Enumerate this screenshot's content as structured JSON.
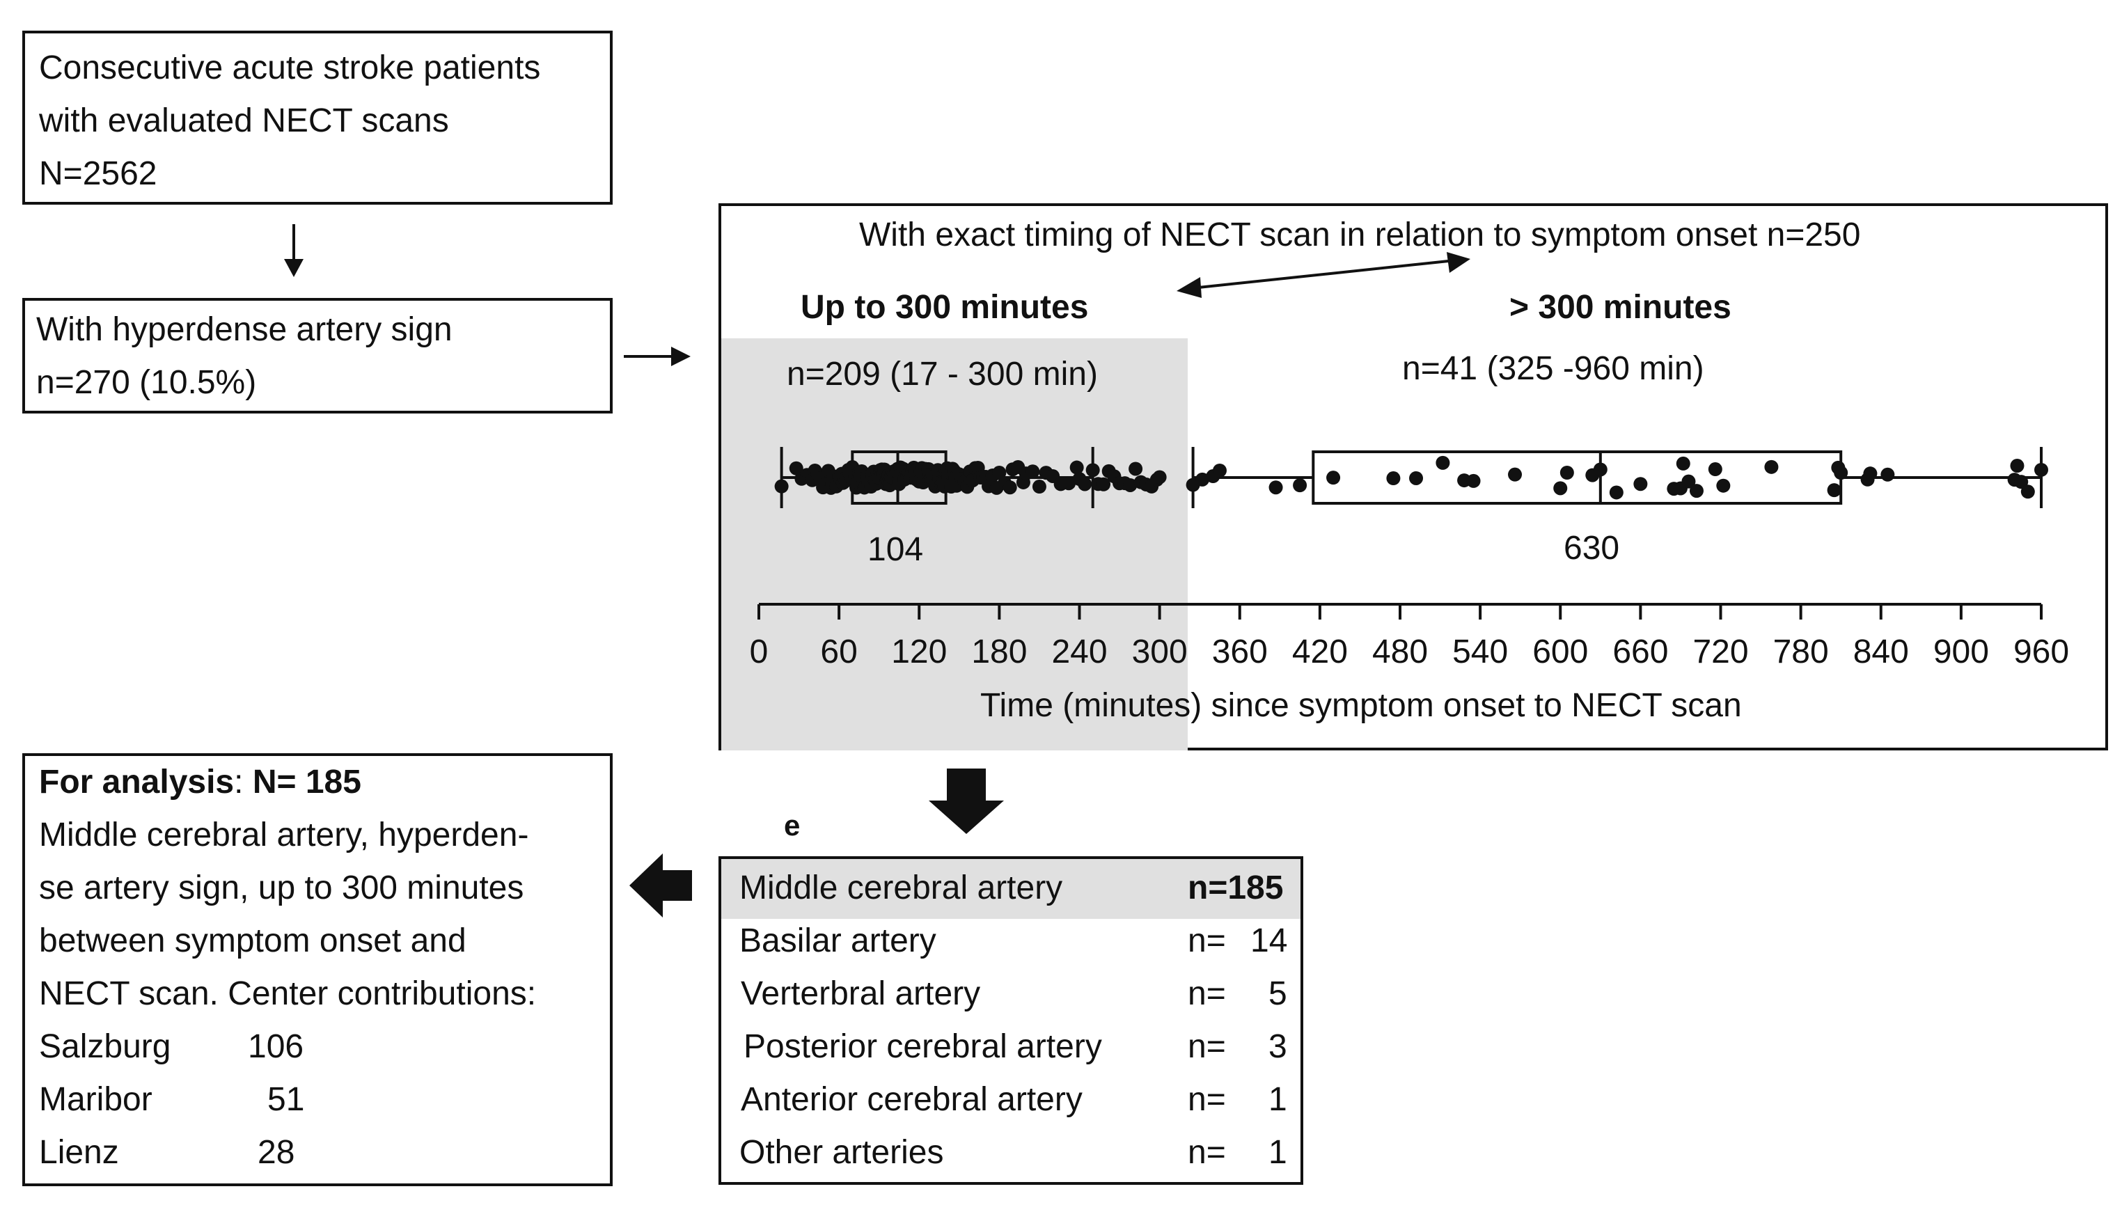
{
  "box1": {
    "lines": [
      "Consecutive acute stroke patients",
      "with evaluated NECT scans",
      "N=2562"
    ]
  },
  "box2": {
    "lines": [
      "With hyperdense artery sign",
      "n=270 (10.5%)"
    ]
  },
  "timing_panel": {
    "title": "With exact timing of NECT scan in relation to symptom onset n=250",
    "left_heading": "Up to 300 minutes",
    "right_heading": "> 300 minutes",
    "left_count": "n=209 (17 - 300 min)",
    "right_count": "n=41 (325 -960 min)",
    "left_median_label": "104",
    "right_median_label": "630",
    "axis_label": "Time (minutes) since symptom onset to NECT scan",
    "shade_color": "#e0e0e0"
  },
  "chart_data": {
    "type": "scatter",
    "xlabel": "Time (minutes) since symptom onset to NECT scan",
    "xlim": [
      0,
      960
    ],
    "xticks": [
      "0",
      "60",
      "120",
      "180",
      "240",
      "300",
      "360",
      "420",
      "480",
      "540",
      "600",
      "660",
      "720",
      "780",
      "840",
      "900",
      "960"
    ],
    "groups": [
      {
        "name": "Up to 300 minutes",
        "n": 209,
        "range": [
          17,
          300
        ],
        "whiskers": [
          17,
          250
        ],
        "box": [
          70,
          140
        ],
        "median": 104,
        "points": [
          17,
          28,
          32,
          36,
          38,
          40,
          42,
          44,
          46,
          48,
          50,
          52,
          54,
          55,
          56,
          58,
          60,
          61,
          62,
          63,
          64,
          65,
          66,
          67,
          68,
          69,
          70,
          71,
          72,
          73,
          74,
          75,
          76,
          77,
          78,
          79,
          80,
          81,
          82,
          83,
          84,
          85,
          86,
          87,
          88,
          89,
          90,
          91,
          92,
          93,
          94,
          95,
          96,
          97,
          98,
          99,
          100,
          101,
          102,
          103,
          104,
          105,
          106,
          107,
          108,
          109,
          110,
          111,
          112,
          113,
          114,
          115,
          116,
          117,
          118,
          119,
          120,
          121,
          122,
          123,
          124,
          125,
          126,
          127,
          128,
          129,
          130,
          131,
          132,
          133,
          134,
          135,
          136,
          137,
          138,
          139,
          140,
          141,
          142,
          143,
          144,
          145,
          146,
          147,
          148,
          150,
          152,
          154,
          156,
          158,
          160,
          162,
          164,
          166,
          168,
          170,
          172,
          175,
          178,
          180,
          184,
          188,
          190,
          194,
          198,
          200,
          205,
          210,
          215,
          220,
          226,
          232,
          238,
          240,
          244,
          250,
          254,
          258,
          262,
          266,
          270,
          274,
          278,
          282,
          286,
          290,
          294,
          298,
          300
        ]
      },
      {
        "name": "> 300 minutes",
        "n": 41,
        "range": [
          325,
          960
        ],
        "whiskers": [
          325,
          960
        ],
        "box": [
          415,
          810
        ],
        "median": 630,
        "points": [
          325,
          332,
          340,
          345,
          387,
          405,
          430,
          475,
          492,
          512,
          528,
          535,
          566,
          600,
          605,
          624,
          630,
          642,
          660,
          685,
          690,
          692,
          696,
          702,
          716,
          722,
          758,
          805,
          808,
          810,
          830,
          832,
          845,
          940,
          942,
          945,
          950,
          960
        ]
      }
    ]
  },
  "box_analysis": {
    "label_bold": "For analysis",
    "colon": ":",
    "count_bold": "N= 185",
    "desc_lines": [
      "Middle cerebral artery, hyperden-",
      "se artery sign, up to 300 minutes",
      "between symptom onset and",
      "NECT scan. Center contributions:"
    ],
    "centers": [
      {
        "name": "Salzburg",
        "count": "106"
      },
      {
        "name": "Maribor",
        "count": "51"
      },
      {
        "name": "Lienz",
        "count": "28"
      }
    ]
  },
  "artery_panel": {
    "tag": "e",
    "highlight_color": "#e0e0e0",
    "rows": [
      {
        "name": "Middle cerebral artery",
        "n_label": "n=185",
        "value": ""
      },
      {
        "name": "Basilar artery",
        "n_label": "n=",
        "value": "14"
      },
      {
        "name": "Verterbral artery",
        "n_label": "n=",
        "value": "5"
      },
      {
        "name": "Posterior cerebral artery",
        "n_label": "n=",
        "value": "3"
      },
      {
        "name": "Anterior cerebral artery",
        "n_label": "n=",
        "value": "1"
      },
      {
        "name": "Other arteries",
        "n_label": "n=",
        "value": "1"
      }
    ]
  }
}
